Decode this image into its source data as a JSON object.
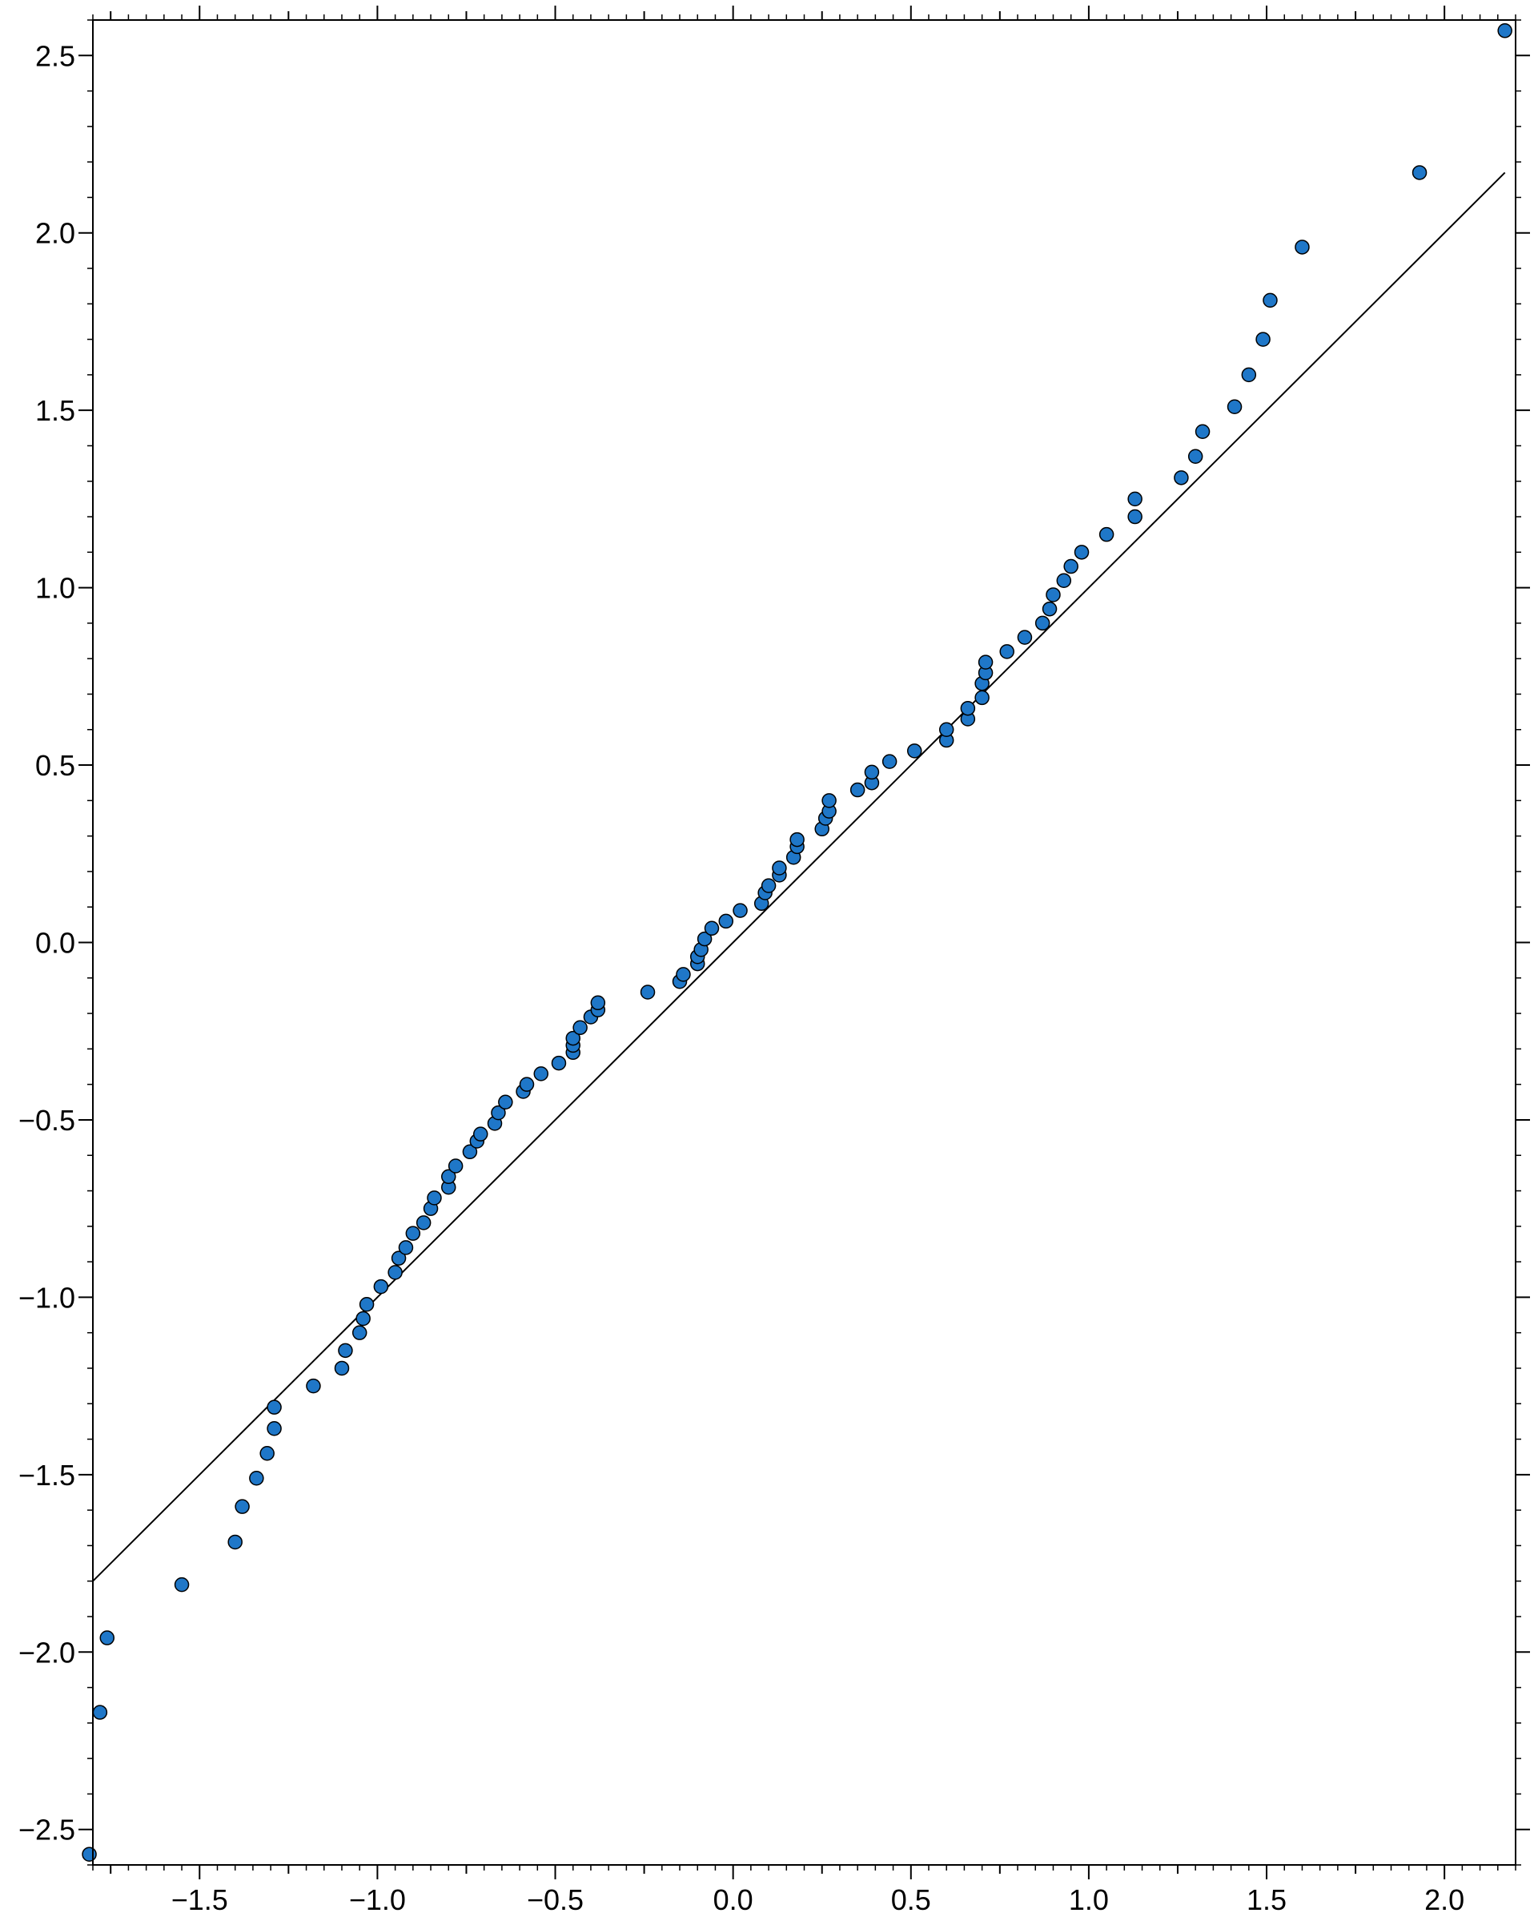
{
  "chart_data": {
    "type": "scatter",
    "title": "",
    "xlabel": "",
    "ylabel": "",
    "xlim": [
      -1.8,
      2.2
    ],
    "ylim": [
      -2.6,
      2.6
    ],
    "x_ticks": [
      -1.5,
      -1.0,
      -0.5,
      0.0,
      0.5,
      1.0,
      1.5,
      2.0
    ],
    "x_tick_labels": [
      "−1.5",
      "−1.0",
      "−0.5",
      "0.0",
      "0.5",
      "1.0",
      "1.5",
      "2.0"
    ],
    "y_ticks": [
      -2.5,
      -2.0,
      -1.5,
      -1.0,
      -0.5,
      0.0,
      0.5,
      1.0,
      1.5,
      2.0,
      2.5
    ],
    "y_tick_labels": [
      "−2.5",
      "−2.0",
      "−1.5",
      "−1.0",
      "−0.5",
      "0.0",
      "0.5",
      "1.0",
      "1.5",
      "2.0",
      "2.5"
    ],
    "grid": false,
    "marker_color": "#1f77c8",
    "marker_edge_color": "#000000",
    "line_color": "#000000",
    "reference_line": {
      "x": [
        -1.8,
        2.17
      ],
      "y": [
        -1.8,
        2.17
      ]
    },
    "series": [
      {
        "points": [
          [
            -1.81,
            -2.57
          ],
          [
            -1.78,
            -2.17
          ],
          [
            -1.76,
            -1.96
          ],
          [
            -1.55,
            -1.81
          ],
          [
            -1.4,
            -1.69
          ],
          [
            -1.38,
            -1.59
          ],
          [
            -1.34,
            -1.51
          ],
          [
            -1.31,
            -1.44
          ],
          [
            -1.29,
            -1.37
          ],
          [
            -1.29,
            -1.31
          ],
          [
            -1.18,
            -1.25
          ],
          [
            -1.1,
            -1.2
          ],
          [
            -1.09,
            -1.15
          ],
          [
            -1.05,
            -1.1
          ],
          [
            -1.04,
            -1.06
          ],
          [
            -1.03,
            -1.02
          ],
          [
            -0.99,
            -0.97
          ],
          [
            -0.95,
            -0.93
          ],
          [
            -0.94,
            -0.89
          ],
          [
            -0.92,
            -0.86
          ],
          [
            -0.9,
            -0.82
          ],
          [
            -0.87,
            -0.79
          ],
          [
            -0.85,
            -0.75
          ],
          [
            -0.84,
            -0.72
          ],
          [
            -0.8,
            -0.69
          ],
          [
            -0.8,
            -0.66
          ],
          [
            -0.78,
            -0.63
          ],
          [
            -0.74,
            -0.59
          ],
          [
            -0.72,
            -0.56
          ],
          [
            -0.71,
            -0.54
          ],
          [
            -0.67,
            -0.51
          ],
          [
            -0.66,
            -0.48
          ],
          [
            -0.64,
            -0.45
          ],
          [
            -0.59,
            -0.42
          ],
          [
            -0.58,
            -0.4
          ],
          [
            -0.54,
            -0.37
          ],
          [
            -0.49,
            -0.34
          ],
          [
            -0.45,
            -0.31
          ],
          [
            -0.45,
            -0.29
          ],
          [
            -0.45,
            -0.27
          ],
          [
            -0.43,
            -0.24
          ],
          [
            -0.4,
            -0.21
          ],
          [
            -0.38,
            -0.19
          ],
          [
            -0.38,
            -0.17
          ],
          [
            -0.24,
            -0.14
          ],
          [
            -0.15,
            -0.11
          ],
          [
            -0.14,
            -0.09
          ],
          [
            -0.1,
            -0.06
          ],
          [
            -0.1,
            -0.04
          ],
          [
            -0.09,
            -0.02
          ],
          [
            -0.08,
            0.01
          ],
          [
            -0.06,
            0.04
          ],
          [
            -0.02,
            0.06
          ],
          [
            0.02,
            0.09
          ],
          [
            0.08,
            0.11
          ],
          [
            0.09,
            0.14
          ],
          [
            0.1,
            0.16
          ],
          [
            0.13,
            0.19
          ],
          [
            0.13,
            0.21
          ],
          [
            0.17,
            0.24
          ],
          [
            0.18,
            0.27
          ],
          [
            0.18,
            0.29
          ],
          [
            0.25,
            0.32
          ],
          [
            0.26,
            0.35
          ],
          [
            0.27,
            0.37
          ],
          [
            0.27,
            0.4
          ],
          [
            0.35,
            0.43
          ],
          [
            0.39,
            0.45
          ],
          [
            0.39,
            0.48
          ],
          [
            0.44,
            0.51
          ],
          [
            0.51,
            0.54
          ],
          [
            0.6,
            0.57
          ],
          [
            0.6,
            0.6
          ],
          [
            0.66,
            0.63
          ],
          [
            0.66,
            0.66
          ],
          [
            0.7,
            0.69
          ],
          [
            0.7,
            0.73
          ],
          [
            0.71,
            0.76
          ],
          [
            0.71,
            0.79
          ],
          [
            0.77,
            0.82
          ],
          [
            0.82,
            0.86
          ],
          [
            0.87,
            0.9
          ],
          [
            0.89,
            0.94
          ],
          [
            0.9,
            0.98
          ],
          [
            0.93,
            1.02
          ],
          [
            0.95,
            1.06
          ],
          [
            0.98,
            1.1
          ],
          [
            1.05,
            1.15
          ],
          [
            1.13,
            1.2
          ],
          [
            1.13,
            1.25
          ],
          [
            1.26,
            1.31
          ],
          [
            1.3,
            1.37
          ],
          [
            1.32,
            1.44
          ],
          [
            1.41,
            1.51
          ],
          [
            1.45,
            1.6
          ],
          [
            1.49,
            1.7
          ],
          [
            1.51,
            1.81
          ],
          [
            1.6,
            1.96
          ],
          [
            1.93,
            2.17
          ],
          [
            2.17,
            2.57
          ]
        ]
      }
    ]
  }
}
